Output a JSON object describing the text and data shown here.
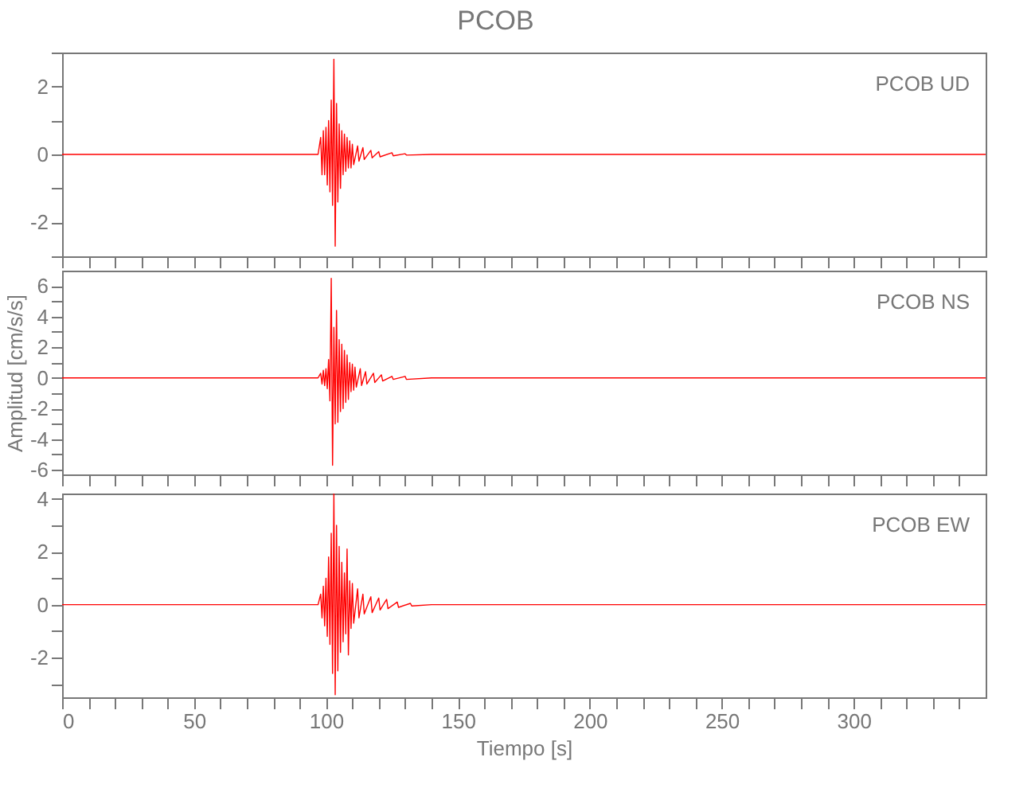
{
  "chart_data": [
    {
      "type": "line",
      "title": "PCOB",
      "annotations": [
        "PCOB   UD"
      ],
      "xlim": [
        0,
        350
      ],
      "xticks": [
        0,
        {
          "value": 10,
          "label": null
        },
        {
          "value": 20,
          "label": null
        },
        {
          "value": 30,
          "label": null
        },
        {
          "value": 40,
          "label": null
        },
        50,
        {
          "value": 60,
          "label": null
        },
        {
          "value": 70,
          "label": null
        },
        {
          "value": 80,
          "label": null
        },
        {
          "value": 90,
          "label": null
        },
        100,
        {
          "value": 110,
          "label": null
        },
        {
          "value": 120,
          "label": null
        },
        {
          "value": 130,
          "label": null
        },
        {
          "value": 140,
          "label": null
        },
        150,
        {
          "value": 160,
          "label": null
        },
        {
          "value": 170,
          "label": null
        },
        {
          "value": 180,
          "label": null
        },
        {
          "value": 190,
          "label": null
        },
        200,
        {
          "value": 210,
          "label": null
        },
        {
          "value": 220,
          "label": null
        },
        {
          "value": 230,
          "label": null
        },
        {
          "value": 240,
          "label": null
        },
        250,
        {
          "value": 260,
          "label": null
        },
        {
          "value": 270,
          "label": null
        },
        {
          "value": 280,
          "label": null
        },
        {
          "value": 290,
          "label": null
        },
        300,
        {
          "value": 310,
          "label": null
        },
        {
          "value": 320,
          "label": null
        },
        {
          "value": 330,
          "label": null
        },
        {
          "value": 340,
          "label": null
        }
      ],
      "ylim": [
        -3,
        3
      ],
      "yticks": [
        {
          "value": -3,
          "label": null
        },
        -2,
        {
          "value": -1,
          "label": null
        },
        0,
        {
          "value": 1,
          "label": null
        },
        2,
        {
          "value": 3,
          "label": null
        }
      ],
      "tick_labels": "y",
      "grid": false,
      "series": [
        {
          "color": "#ff0000",
          "x": [
            0,
            20,
            40,
            60,
            80,
            97,
            98,
            98.5,
            99,
            99.5,
            100,
            100.5,
            101,
            101.5,
            102,
            102.5,
            103,
            103.5,
            104,
            104.5,
            105,
            105.5,
            106,
            106.5,
            107,
            107.5,
            108,
            108.5,
            109,
            109.5,
            110,
            110.5,
            112,
            112.5,
            114,
            114.5,
            117,
            117.5,
            120,
            120.5,
            125,
            125.5,
            130,
            130.5,
            140,
            200,
            250,
            300,
            350
          ],
          "values": [
            0,
            0,
            0,
            0,
            0,
            0,
            0.5,
            -0.6,
            0.7,
            -0.6,
            0.8,
            -0.9,
            1.0,
            -1.1,
            1.6,
            -1.5,
            2.8,
            -2.7,
            1.5,
            -1.4,
            0.9,
            -1.0,
            0.7,
            -0.6,
            0.6,
            -0.5,
            0.5,
            -0.4,
            0.4,
            -0.4,
            0.3,
            -0.3,
            0.25,
            -0.2,
            0.2,
            -0.15,
            0.12,
            -0.1,
            0.08,
            -0.07,
            0.05,
            -0.04,
            0.02,
            -0.02,
            0,
            0,
            0,
            0,
            0
          ]
        }
      ]
    },
    {
      "type": "line",
      "ylabel": "Amplitud [cm/s/s]",
      "annotations": [
        "PCOB   NS"
      ],
      "xlim": [
        0,
        350
      ],
      "xticks": [
        0,
        {
          "value": 10,
          "label": null
        },
        {
          "value": 20,
          "label": null
        },
        {
          "value": 30,
          "label": null
        },
        {
          "value": 40,
          "label": null
        },
        50,
        {
          "value": 60,
          "label": null
        },
        {
          "value": 70,
          "label": null
        },
        {
          "value": 80,
          "label": null
        },
        {
          "value": 90,
          "label": null
        },
        100,
        {
          "value": 110,
          "label": null
        },
        {
          "value": 120,
          "label": null
        },
        {
          "value": 130,
          "label": null
        },
        {
          "value": 140,
          "label": null
        },
        150,
        {
          "value": 160,
          "label": null
        },
        {
          "value": 170,
          "label": null
        },
        {
          "value": 180,
          "label": null
        },
        {
          "value": 190,
          "label": null
        },
        200,
        {
          "value": 210,
          "label": null
        },
        {
          "value": 220,
          "label": null
        },
        {
          "value": 230,
          "label": null
        },
        {
          "value": 240,
          "label": null
        },
        250,
        {
          "value": 260,
          "label": null
        },
        {
          "value": 270,
          "label": null
        },
        {
          "value": 280,
          "label": null
        },
        {
          "value": 290,
          "label": null
        },
        300,
        {
          "value": 310,
          "label": null
        },
        {
          "value": 320,
          "label": null
        },
        {
          "value": 330,
          "label": null
        },
        {
          "value": 340,
          "label": null
        }
      ],
      "ylim": [
        -6.3,
        7
      ],
      "yticks": [
        -6,
        {
          "value": -5,
          "label": null
        },
        -4,
        {
          "value": -3,
          "label": null
        },
        -2,
        {
          "value": -1,
          "label": null
        },
        0,
        {
          "value": 1,
          "label": null
        },
        2,
        {
          "value": 3,
          "label": null
        },
        4,
        {
          "value": 5,
          "label": null
        },
        6
      ],
      "tick_labels": "y",
      "grid": false,
      "series": [
        {
          "color": "#ff0000",
          "x": [
            0,
            20,
            40,
            60,
            80,
            97,
            98,
            98.5,
            99,
            99.5,
            100,
            100.5,
            101,
            101.5,
            102,
            102.5,
            103,
            103.5,
            104,
            104.5,
            105,
            105.5,
            106,
            106.5,
            107,
            107.5,
            108,
            108.5,
            109,
            109.5,
            110,
            110.5,
            111,
            111.5,
            113,
            113.5,
            115,
            115.5,
            118,
            118.5,
            121,
            121.5,
            125,
            125.5,
            130,
            130.5,
            140,
            200,
            250,
            300,
            350
          ],
          "values": [
            0,
            0,
            0,
            0,
            0,
            0,
            0.3,
            -0.4,
            0.5,
            -0.5,
            0.6,
            -0.7,
            1.2,
            -1.5,
            6.5,
            -5.7,
            3.3,
            -3.0,
            4.4,
            -2.9,
            2.5,
            -2.2,
            2.2,
            -2.0,
            1.8,
            -1.6,
            1.5,
            -1.4,
            1.0,
            -0.9,
            0.9,
            -0.8,
            0.7,
            -0.6,
            0.6,
            -0.5,
            0.4,
            -0.4,
            0.3,
            -0.3,
            0.2,
            -0.2,
            0.1,
            -0.1,
            0.1,
            -0.1,
            0,
            0,
            0,
            0,
            0
          ]
        }
      ]
    },
    {
      "type": "line",
      "xlabel": "Tiempo [s]",
      "annotations": [
        "PCOB   EW"
      ],
      "xlim": [
        0,
        350
      ],
      "xticks": [
        0,
        {
          "value": 10,
          "label": null
        },
        {
          "value": 20,
          "label": null
        },
        {
          "value": 30,
          "label": null
        },
        {
          "value": 40,
          "label": null
        },
        50,
        {
          "value": 60,
          "label": null
        },
        {
          "value": 70,
          "label": null
        },
        {
          "value": 80,
          "label": null
        },
        {
          "value": 90,
          "label": null
        },
        100,
        {
          "value": 110,
          "label": null
        },
        {
          "value": 120,
          "label": null
        },
        {
          "value": 130,
          "label": null
        },
        {
          "value": 140,
          "label": null
        },
        150,
        {
          "value": 160,
          "label": null
        },
        {
          "value": 170,
          "label": null
        },
        {
          "value": 180,
          "label": null
        },
        {
          "value": 190,
          "label": null
        },
        200,
        {
          "value": 210,
          "label": null
        },
        {
          "value": 220,
          "label": null
        },
        {
          "value": 230,
          "label": null
        },
        {
          "value": 240,
          "label": null
        },
        250,
        {
          "value": 260,
          "label": null
        },
        {
          "value": 270,
          "label": null
        },
        {
          "value": 280,
          "label": null
        },
        {
          "value": 290,
          "label": null
        },
        300,
        {
          "value": 310,
          "label": null
        },
        {
          "value": 320,
          "label": null
        },
        {
          "value": 330,
          "label": null
        },
        {
          "value": 340,
          "label": null
        }
      ],
      "ylim": [
        -3.5,
        4.2
      ],
      "yticks": [
        {
          "value": -3,
          "label": null
        },
        -2,
        {
          "value": -1,
          "label": null
        },
        0,
        {
          "value": 1,
          "label": null
        },
        2,
        {
          "value": 3,
          "label": null
        },
        4
      ],
      "grid": false,
      "series": [
        {
          "color": "#ff0000",
          "x": [
            0,
            20,
            40,
            60,
            80,
            97,
            98,
            98.5,
            99,
            99.5,
            100,
            100.5,
            101,
            101.5,
            102,
            102.5,
            103,
            103.5,
            104,
            104.5,
            105,
            105.5,
            106,
            106.5,
            107,
            107.5,
            108,
            108.5,
            109,
            109.5,
            110,
            110.5,
            112,
            112.5,
            114,
            114.5,
            117,
            117.5,
            120,
            120.5,
            123,
            123.5,
            127,
            127.5,
            132,
            132.5,
            140,
            200,
            250,
            300,
            350
          ],
          "values": [
            0,
            0,
            0,
            0,
            0,
            0,
            0.4,
            -0.5,
            0.7,
            -0.8,
            1.0,
            -1.2,
            1.8,
            -1.5,
            2.7,
            -2.6,
            4.2,
            -3.4,
            3.0,
            -2.5,
            2.2,
            -1.8,
            1.6,
            -1.4,
            1.2,
            -1.1,
            2.1,
            -1.9,
            0.9,
            -0.9,
            0.8,
            -0.7,
            0.6,
            -0.5,
            0.4,
            -0.35,
            0.3,
            -0.3,
            0.25,
            -0.2,
            0.2,
            -0.15,
            0.1,
            -0.1,
            0.05,
            -0.05,
            0,
            0,
            0,
            0,
            0
          ]
        }
      ]
    }
  ]
}
